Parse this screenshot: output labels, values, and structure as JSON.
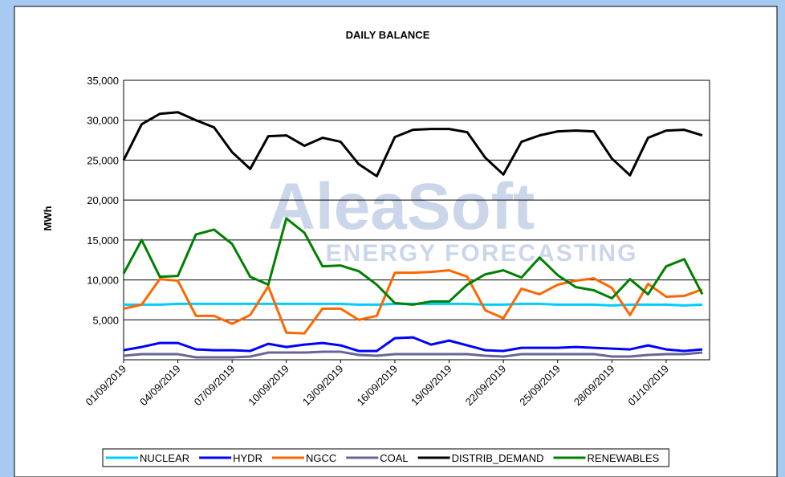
{
  "chart_data": {
    "type": "line",
    "title": "DAILY BALANCE",
    "ylabel": "MWh",
    "watermark": [
      "AleaSoft",
      "ENERGY FORECASTING"
    ],
    "categories": [
      "01/09/2019",
      null,
      null,
      "04/09/2019",
      null,
      null,
      "07/09/2019",
      null,
      null,
      "10/09/2019",
      null,
      null,
      "13/09/2019",
      null,
      null,
      "16/09/2019",
      null,
      null,
      "19/09/2019",
      null,
      null,
      "22/09/2019",
      null,
      null,
      "25/09/2019",
      null,
      null,
      "28/09/2019",
      null,
      null,
      "01/10/2019",
      null,
      null
    ],
    "ylim": [
      0,
      35000
    ],
    "yticks": [
      {
        "value": 5000,
        "label": "5,000"
      },
      {
        "value": 10000,
        "label": "10,000"
      },
      {
        "value": 15000,
        "label": "15,000"
      },
      {
        "value": 20000,
        "label": "20,000"
      },
      {
        "value": 25000,
        "label": "25,000"
      },
      {
        "value": 30000,
        "label": "30,000"
      },
      {
        "value": 35000,
        "label": "35,000"
      }
    ],
    "grid": true,
    "legend": "bottom",
    "series": [
      {
        "name": "NUCLEAR",
        "color": "#00ccff",
        "values": [
          6900,
          6900,
          6900,
          7000,
          7000,
          7000,
          7000,
          7000,
          7000,
          7000,
          7000,
          7000,
          7000,
          6900,
          6900,
          7000,
          7000,
          7000,
          7000,
          7000,
          6900,
          6900,
          7000,
          7000,
          6900,
          6900,
          6900,
          6800,
          6900,
          6900,
          6900,
          6800,
          6900
        ]
      },
      {
        "name": "HYDR",
        "color": "#0000ff",
        "values": [
          1200,
          1600,
          2100,
          2100,
          1300,
          1200,
          1200,
          1100,
          2000,
          1600,
          1900,
          2100,
          1800,
          1100,
          1100,
          2700,
          2800,
          1900,
          2400,
          1800,
          1200,
          1100,
          1500,
          1500,
          1500,
          1600,
          1500,
          1400,
          1300,
          1800,
          1300,
          1100,
          1300
        ]
      },
      {
        "name": "NGCC",
        "color": "#ff6600",
        "values": [
          6400,
          6900,
          10100,
          9900,
          5500,
          5500,
          4500,
          5600,
          9200,
          3400,
          3300,
          6400,
          6400,
          5000,
          5500,
          10900,
          10900,
          11000,
          11200,
          10400,
          6200,
          5200,
          8900,
          8200,
          9400,
          9900,
          10200,
          9000,
          5600,
          9500,
          7900,
          8000,
          8800
        ]
      },
      {
        "name": "COAL",
        "color": "#666699",
        "values": [
          500,
          700,
          700,
          700,
          300,
          300,
          300,
          400,
          900,
          900,
          900,
          1000,
          1000,
          600,
          500,
          700,
          700,
          700,
          700,
          700,
          500,
          400,
          700,
          700,
          700,
          700,
          700,
          400,
          400,
          600,
          700,
          700,
          900
        ]
      },
      {
        "name": "DISTRIB_DEMAND",
        "color": "#000000",
        "values": [
          25000,
          29500,
          30800,
          31000,
          30000,
          29100,
          26000,
          23900,
          28000,
          28100,
          26800,
          27800,
          27300,
          24500,
          23000,
          27900,
          28800,
          28900,
          28900,
          28500,
          25300,
          23200,
          27300,
          28100,
          28600,
          28700,
          28600,
          25200,
          23100,
          27800,
          28700,
          28800,
          28100
        ]
      },
      {
        "name": "RENEWABLES",
        "color": "#008000",
        "values": [
          10800,
          15000,
          10400,
          10500,
          15700,
          16300,
          14500,
          10400,
          9400,
          17700,
          15900,
          11700,
          11800,
          11100,
          9400,
          7100,
          6900,
          7300,
          7300,
          9400,
          10700,
          11200,
          10300,
          12800,
          10600,
          9100,
          8700,
          7700,
          10100,
          8200,
          11700,
          12600,
          8200
        ]
      }
    ]
  }
}
